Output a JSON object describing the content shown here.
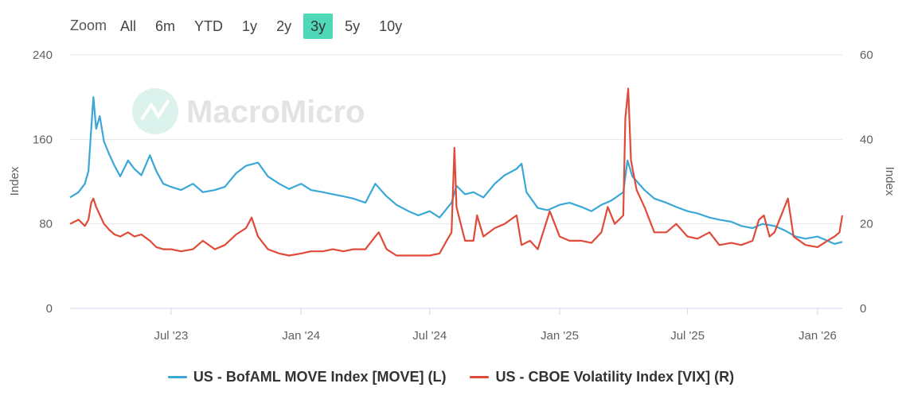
{
  "range_selector": {
    "label": "Zoom",
    "buttons": [
      "All",
      "6m",
      "YTD",
      "1y",
      "2y",
      "3y",
      "5y",
      "10y"
    ],
    "active": "3y",
    "active_color": "#4fd8b7"
  },
  "watermark": {
    "text": "MacroMicro"
  },
  "chart_data": {
    "type": "line",
    "x_ticks": [
      "Jul '23",
      "Jan '24",
      "Jul '24",
      "Jan '25",
      "Jul '25",
      "Jan '26"
    ],
    "y_left": {
      "label": "Index",
      "ticks": [
        "0",
        "80",
        "160",
        "240"
      ],
      "range": [
        0,
        240
      ]
    },
    "y_right": {
      "label": "Index",
      "ticks": [
        "0",
        "20",
        "40",
        "60"
      ],
      "range": [
        0,
        60
      ]
    },
    "x_range": [
      "2023-02-08",
      "2026-02-05"
    ],
    "series": [
      {
        "name": "US - BofAML MOVE Index [MOVE] (L)",
        "color": "#3aa8d6",
        "axis": "left",
        "points": [
          [
            "2023-02-08",
            105
          ],
          [
            "2023-02-20",
            110
          ],
          [
            "2023-03-01",
            118
          ],
          [
            "2023-03-06",
            130
          ],
          [
            "2023-03-10",
            170
          ],
          [
            "2023-03-13",
            200
          ],
          [
            "2023-03-17",
            170
          ],
          [
            "2023-03-22",
            182
          ],
          [
            "2023-03-28",
            158
          ],
          [
            "2023-04-05",
            145
          ],
          [
            "2023-04-12",
            135
          ],
          [
            "2023-04-20",
            125
          ],
          [
            "2023-05-01",
            140
          ],
          [
            "2023-05-10",
            132
          ],
          [
            "2023-05-20",
            126
          ],
          [
            "2023-06-01",
            145
          ],
          [
            "2023-06-10",
            130
          ],
          [
            "2023-06-20",
            118
          ],
          [
            "2023-07-01",
            115
          ],
          [
            "2023-07-15",
            112
          ],
          [
            "2023-08-01",
            118
          ],
          [
            "2023-08-15",
            110
          ],
          [
            "2023-09-01",
            112
          ],
          [
            "2023-09-15",
            115
          ],
          [
            "2023-10-01",
            128
          ],
          [
            "2023-10-15",
            135
          ],
          [
            "2023-11-01",
            138
          ],
          [
            "2023-11-15",
            125
          ],
          [
            "2023-12-01",
            118
          ],
          [
            "2023-12-15",
            113
          ],
          [
            "2024-01-01",
            118
          ],
          [
            "2024-01-15",
            112
          ],
          [
            "2024-02-01",
            110
          ],
          [
            "2024-02-15",
            108
          ],
          [
            "2024-03-01",
            106
          ],
          [
            "2024-03-15",
            104
          ],
          [
            "2024-04-01",
            100
          ],
          [
            "2024-04-15",
            118
          ],
          [
            "2024-05-01",
            106
          ],
          [
            "2024-05-15",
            98
          ],
          [
            "2024-06-01",
            92
          ],
          [
            "2024-06-15",
            88
          ],
          [
            "2024-07-01",
            92
          ],
          [
            "2024-07-15",
            86
          ],
          [
            "2024-08-01",
            100
          ],
          [
            "2024-08-08",
            116
          ],
          [
            "2024-08-20",
            108
          ],
          [
            "2024-09-01",
            110
          ],
          [
            "2024-09-15",
            105
          ],
          [
            "2024-10-01",
            118
          ],
          [
            "2024-10-15",
            126
          ],
          [
            "2024-11-01",
            132
          ],
          [
            "2024-11-08",
            137
          ],
          [
            "2024-11-15",
            110
          ],
          [
            "2024-12-01",
            95
          ],
          [
            "2024-12-15",
            93
          ],
          [
            "2025-01-01",
            98
          ],
          [
            "2025-01-15",
            100
          ],
          [
            "2025-02-01",
            96
          ],
          [
            "2025-02-15",
            92
          ],
          [
            "2025-03-01",
            98
          ],
          [
            "2025-03-15",
            102
          ],
          [
            "2025-04-01",
            110
          ],
          [
            "2025-04-07",
            140
          ],
          [
            "2025-04-14",
            125
          ],
          [
            "2025-05-01",
            112
          ],
          [
            "2025-05-15",
            104
          ],
          [
            "2025-06-01",
            100
          ],
          [
            "2025-06-15",
            96
          ],
          [
            "2025-07-01",
            92
          ],
          [
            "2025-07-15",
            90
          ],
          [
            "2025-08-01",
            86
          ],
          [
            "2025-08-15",
            84
          ],
          [
            "2025-09-01",
            82
          ],
          [
            "2025-09-15",
            78
          ],
          [
            "2025-10-01",
            76
          ],
          [
            "2025-10-15",
            80
          ],
          [
            "2025-11-01",
            78
          ],
          [
            "2025-11-15",
            74
          ],
          [
            "2025-12-01",
            68
          ],
          [
            "2025-12-15",
            66
          ],
          [
            "2026-01-01",
            68
          ],
          [
            "2026-01-15",
            64
          ],
          [
            "2026-01-25",
            61
          ],
          [
            "2026-02-05",
            63
          ]
        ]
      },
      {
        "name": "US - CBOE Volatility Index [VIX] (R)",
        "color": "#e04a39",
        "axis": "right",
        "points": [
          [
            "2023-02-08",
            20
          ],
          [
            "2023-02-20",
            21
          ],
          [
            "2023-03-01",
            19.5
          ],
          [
            "2023-03-06",
            21
          ],
          [
            "2023-03-10",
            25
          ],
          [
            "2023-03-13",
            26
          ],
          [
            "2023-03-17",
            24
          ],
          [
            "2023-03-28",
            20
          ],
          [
            "2023-04-05",
            18.5
          ],
          [
            "2023-04-12",
            17.5
          ],
          [
            "2023-04-20",
            17
          ],
          [
            "2023-05-01",
            18
          ],
          [
            "2023-05-10",
            17
          ],
          [
            "2023-05-20",
            17.5
          ],
          [
            "2023-06-01",
            16
          ],
          [
            "2023-06-10",
            14.5
          ],
          [
            "2023-06-20",
            14
          ],
          [
            "2023-07-01",
            14
          ],
          [
            "2023-07-15",
            13.5
          ],
          [
            "2023-08-01",
            14
          ],
          [
            "2023-08-15",
            16
          ],
          [
            "2023-09-01",
            14
          ],
          [
            "2023-09-15",
            15
          ],
          [
            "2023-10-01",
            17.5
          ],
          [
            "2023-10-15",
            19
          ],
          [
            "2023-10-23",
            21.5
          ],
          [
            "2023-11-01",
            17
          ],
          [
            "2023-11-15",
            14
          ],
          [
            "2023-12-01",
            13
          ],
          [
            "2023-12-15",
            12.5
          ],
          [
            "2024-01-01",
            13
          ],
          [
            "2024-01-15",
            13.5
          ],
          [
            "2024-02-01",
            13.5
          ],
          [
            "2024-02-15",
            14
          ],
          [
            "2024-03-01",
            13.5
          ],
          [
            "2024-03-15",
            14
          ],
          [
            "2024-04-01",
            14
          ],
          [
            "2024-04-15",
            17
          ],
          [
            "2024-04-20",
            18
          ],
          [
            "2024-05-01",
            14
          ],
          [
            "2024-05-15",
            12.5
          ],
          [
            "2024-06-01",
            12.5
          ],
          [
            "2024-06-15",
            12.5
          ],
          [
            "2024-07-01",
            12.5
          ],
          [
            "2024-07-15",
            13
          ],
          [
            "2024-07-25",
            16
          ],
          [
            "2024-08-01",
            18
          ],
          [
            "2024-08-05",
            38
          ],
          [
            "2024-08-08",
            24
          ],
          [
            "2024-08-20",
            16
          ],
          [
            "2024-09-01",
            16
          ],
          [
            "2024-09-06",
            22
          ],
          [
            "2024-09-15",
            17
          ],
          [
            "2024-10-01",
            19
          ],
          [
            "2024-10-15",
            20
          ],
          [
            "2024-11-01",
            22
          ],
          [
            "2024-11-08",
            15
          ],
          [
            "2024-11-20",
            16
          ],
          [
            "2024-12-01",
            14
          ],
          [
            "2024-12-18",
            23
          ],
          [
            "2025-01-01",
            17
          ],
          [
            "2025-01-15",
            16
          ],
          [
            "2025-02-01",
            16
          ],
          [
            "2025-02-15",
            15.5
          ],
          [
            "2025-03-01",
            18
          ],
          [
            "2025-03-10",
            24
          ],
          [
            "2025-03-20",
            20
          ],
          [
            "2025-04-01",
            22
          ],
          [
            "2025-04-04",
            45
          ],
          [
            "2025-04-08",
            52
          ],
          [
            "2025-04-12",
            35
          ],
          [
            "2025-04-20",
            28
          ],
          [
            "2025-05-01",
            24
          ],
          [
            "2025-05-15",
            18
          ],
          [
            "2025-06-01",
            18
          ],
          [
            "2025-06-15",
            20
          ],
          [
            "2025-07-01",
            17
          ],
          [
            "2025-07-15",
            16.5
          ],
          [
            "2025-08-01",
            18
          ],
          [
            "2025-08-15",
            15
          ],
          [
            "2025-09-01",
            15.5
          ],
          [
            "2025-09-15",
            15
          ],
          [
            "2025-10-01",
            16
          ],
          [
            "2025-10-10",
            21
          ],
          [
            "2025-10-17",
            22
          ],
          [
            "2025-10-25",
            17
          ],
          [
            "2025-11-01",
            18
          ],
          [
            "2025-11-20",
            26
          ],
          [
            "2025-11-28",
            17
          ],
          [
            "2025-12-15",
            15
          ],
          [
            "2026-01-01",
            14.5
          ],
          [
            "2026-01-15",
            16
          ],
          [
            "2026-01-25",
            17
          ],
          [
            "2026-02-01",
            18
          ],
          [
            "2026-02-05",
            22
          ]
        ]
      }
    ]
  }
}
